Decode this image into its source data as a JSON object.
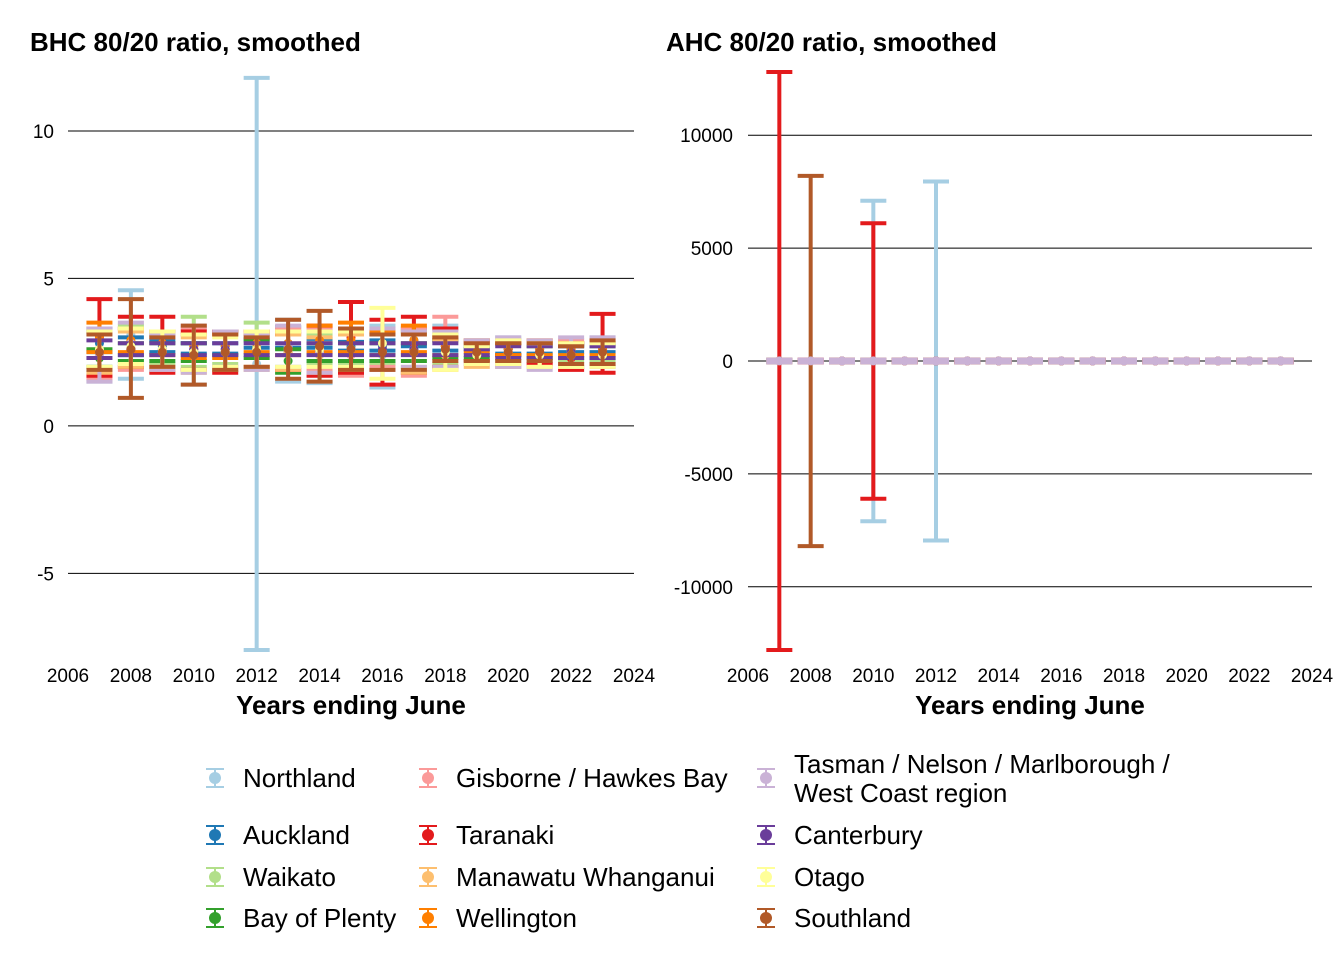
{
  "chart_data": [
    {
      "type": "errorbar",
      "title": "BHC 80/20 ratio, smoothed",
      "xlabel": "Years ending June",
      "ylabel": "",
      "xlim": [
        2006,
        2024
      ],
      "ylim": [
        -7.6,
        12
      ],
      "xticks": [
        "2006",
        "2008",
        "2010",
        "2012",
        "2014",
        "2016",
        "2018",
        "2020",
        "2022",
        "2024"
      ],
      "yticks": [
        -5,
        0,
        5,
        10
      ],
      "grid": "horizontal",
      "x": [
        2007,
        2008,
        2009,
        2010,
        2011,
        2012,
        2013,
        2014,
        2015,
        2016,
        2017,
        2018,
        2019,
        2020,
        2021,
        2022,
        2023
      ],
      "series": [
        {
          "name": "Northland",
          "color": "#a6cee3",
          "values": [
            2.4,
            3.1,
            2.6,
            2.4,
            2.5,
            2.1,
            2.5,
            2.4,
            2.5,
            2.4,
            2.6,
            2.7,
            2.5,
            2.5,
            2.4,
            2.4,
            2.5
          ],
          "lower": [
            1.5,
            1.6,
            1.9,
            1.4,
            1.9,
            -7.6,
            1.5,
            1.45,
            1.9,
            1.3,
            1.9,
            1.95,
            2.1,
            2.0,
            2.0,
            2.0,
            2.0
          ],
          "upper": [
            3.2,
            4.6,
            3.2,
            3.3,
            3.1,
            11.8,
            3.6,
            3.3,
            3.1,
            3.4,
            3.2,
            3.4,
            2.9,
            3.0,
            2.8,
            2.8,
            3.0
          ]
        },
        {
          "name": "Auckland",
          "color": "#1f78b4",
          "values": [
            2.8,
            2.6,
            2.7,
            2.6,
            2.6,
            2.8,
            2.8,
            2.8,
            2.7,
            2.7,
            2.9,
            2.7,
            2.7,
            2.6,
            2.6,
            2.6,
            2.6
          ],
          "lower": [
            2.5,
            2.4,
            2.5,
            2.45,
            2.45,
            2.65,
            2.65,
            2.65,
            2.55,
            2.55,
            2.7,
            2.55,
            2.6,
            2.45,
            2.45,
            2.5,
            2.5
          ],
          "upper": [
            3.3,
            3.0,
            2.9,
            2.8,
            2.8,
            2.95,
            3.35,
            2.95,
            2.85,
            2.9,
            3.3,
            2.9,
            2.8,
            2.8,
            2.8,
            2.75,
            2.75
          ]
        },
        {
          "name": "Waikato",
          "color": "#b2df8a",
          "values": [
            2.6,
            2.8,
            2.6,
            2.7,
            2.6,
            2.7,
            2.6,
            2.6,
            2.6,
            2.6,
            2.6,
            2.6,
            2.5,
            2.5,
            2.5,
            2.5,
            2.5
          ],
          "lower": [
            2.0,
            2.2,
            2.1,
            2.0,
            2.1,
            2.0,
            2.0,
            2.1,
            2.1,
            2.1,
            2.0,
            2.1,
            2.2,
            2.2,
            2.2,
            2.2,
            2.2
          ],
          "upper": [
            3.2,
            3.4,
            3.1,
            3.7,
            3.2,
            3.5,
            3.2,
            3.1,
            3.1,
            3.1,
            3.2,
            3.1,
            2.8,
            2.8,
            2.8,
            2.8,
            2.8
          ]
        },
        {
          "name": "Bay of Plenty",
          "color": "#33a02c",
          "values": [
            2.3,
            2.5,
            2.5,
            2.5,
            2.7,
            2.6,
            2.2,
            2.5,
            2.5,
            2.5,
            2.5,
            2.6,
            2.5,
            2.6,
            2.5,
            2.5,
            2.5
          ],
          "lower": [
            2.0,
            2.2,
            2.2,
            2.2,
            2.4,
            2.3,
            1.8,
            2.2,
            2.2,
            2.2,
            2.2,
            2.3,
            2.3,
            2.4,
            2.3,
            2.3,
            2.3
          ],
          "upper": [
            2.6,
            2.8,
            2.8,
            2.8,
            3.2,
            2.9,
            2.6,
            2.8,
            2.8,
            2.8,
            2.8,
            2.9,
            2.7,
            2.8,
            2.7,
            2.7,
            2.7
          ]
        },
        {
          "name": "Gisborne / Hawkes Bay",
          "color": "#fb9a99",
          "values": [
            2.4,
            2.6,
            2.5,
            2.6,
            2.6,
            2.6,
            2.6,
            2.6,
            2.4,
            2.6,
            2.5,
            2.7,
            2.5,
            2.5,
            2.5,
            2.5,
            2.5
          ],
          "lower": [
            1.6,
            1.9,
            2.0,
            1.9,
            2.0,
            2.0,
            1.9,
            1.9,
            1.7,
            2.0,
            1.7,
            2.0,
            2.1,
            2.1,
            2.1,
            2.1,
            2.1
          ],
          "upper": [
            3.2,
            3.3,
            3.0,
            3.3,
            3.2,
            3.2,
            3.3,
            3.3,
            3.1,
            3.3,
            3.3,
            3.7,
            2.9,
            2.9,
            2.9,
            2.9,
            2.9
          ]
        },
        {
          "name": "Taranaki",
          "color": "#e31a1c",
          "values": [
            3.0,
            2.8,
            2.8,
            2.6,
            2.5,
            2.6,
            2.5,
            2.6,
            3.0,
            2.5,
            2.8,
            2.7,
            2.5,
            2.6,
            2.5,
            2.3,
            2.8
          ],
          "lower": [
            1.7,
            2.0,
            1.8,
            1.9,
            1.8,
            2.0,
            1.9,
            1.7,
            1.8,
            1.4,
            1.8,
            2.0,
            2.2,
            2.4,
            2.1,
            1.9,
            1.8
          ],
          "upper": [
            4.3,
            3.7,
            3.7,
            3.2,
            3.2,
            3.2,
            3.1,
            3.4,
            4.2,
            3.6,
            3.7,
            3.3,
            2.8,
            2.8,
            2.8,
            2.8,
            3.8
          ]
        },
        {
          "name": "Manawatu Whanganui",
          "color": "#fdbf6f",
          "values": [
            2.5,
            2.6,
            2.5,
            2.4,
            2.5,
            2.5,
            2.5,
            2.4,
            2.5,
            2.5,
            2.5,
            2.4,
            2.4,
            2.4,
            2.4,
            2.4,
            2.4
          ],
          "lower": [
            1.8,
            2.0,
            1.9,
            1.8,
            1.9,
            1.9,
            1.9,
            1.8,
            1.9,
            1.9,
            1.8,
            1.9,
            2.0,
            2.0,
            2.0,
            2.0,
            2.0
          ],
          "upper": [
            3.2,
            3.2,
            3.1,
            3.0,
            3.1,
            3.1,
            3.1,
            3.0,
            3.1,
            3.1,
            3.2,
            2.9,
            2.8,
            2.8,
            2.8,
            2.8,
            2.8
          ]
        },
        {
          "name": "Wellington",
          "color": "#ff7f00",
          "values": [
            3.0,
            2.9,
            2.8,
            2.7,
            2.7,
            2.8,
            2.8,
            2.9,
            2.9,
            2.8,
            2.9,
            2.7,
            2.7,
            2.6,
            2.6,
            2.6,
            2.6
          ],
          "lower": [
            2.5,
            2.5,
            2.4,
            2.3,
            2.3,
            2.5,
            2.4,
            2.5,
            2.5,
            2.4,
            2.5,
            2.4,
            2.5,
            2.4,
            2.4,
            2.4,
            2.4
          ],
          "upper": [
            3.5,
            3.3,
            3.2,
            3.1,
            3.1,
            3.1,
            3.2,
            3.4,
            3.5,
            3.2,
            3.4,
            3.0,
            2.9,
            2.8,
            2.9,
            2.8,
            2.8
          ]
        },
        {
          "name": "Tasman / Nelson / Marlborough / West Coast region",
          "color": "#cab2d6",
          "values": [
            2.4,
            2.8,
            2.5,
            2.6,
            2.6,
            2.5,
            2.7,
            2.5,
            2.6,
            2.6,
            2.6,
            2.6,
            2.5,
            2.5,
            2.4,
            2.5,
            2.5
          ],
          "lower": [
            1.5,
            2.1,
            1.9,
            1.8,
            2.0,
            1.9,
            2.0,
            1.8,
            2.0,
            1.9,
            2.0,
            2.0,
            2.1,
            2.0,
            1.9,
            2.0,
            2.0
          ],
          "upper": [
            3.3,
            3.5,
            3.1,
            3.4,
            3.2,
            3.1,
            3.4,
            3.2,
            3.2,
            3.3,
            3.2,
            3.2,
            2.9,
            3.0,
            2.9,
            3.0,
            3.0
          ]
        },
        {
          "name": "Canterbury",
          "color": "#6a3d9a",
          "values": [
            2.6,
            2.6,
            2.6,
            2.6,
            2.6,
            2.6,
            2.6,
            2.6,
            2.6,
            2.6,
            2.6,
            2.6,
            2.5,
            2.5,
            2.5,
            2.5,
            2.5
          ],
          "lower": [
            2.3,
            2.4,
            2.4,
            2.4,
            2.4,
            2.4,
            2.4,
            2.4,
            2.4,
            2.4,
            2.4,
            2.4,
            2.4,
            2.3,
            2.3,
            2.3,
            2.3
          ],
          "upper": [
            2.9,
            2.8,
            2.8,
            2.8,
            2.8,
            2.8,
            2.8,
            2.8,
            2.8,
            2.8,
            2.8,
            2.8,
            2.6,
            2.7,
            2.7,
            2.7,
            2.7
          ]
        },
        {
          "name": "Otago",
          "color": "#ffff99",
          "values": [
            2.6,
            2.7,
            2.6,
            2.5,
            2.5,
            2.6,
            2.6,
            2.6,
            2.6,
            2.8,
            2.5,
            2.5,
            2.4,
            2.5,
            2.4,
            2.4,
            2.4
          ],
          "lower": [
            2.0,
            2.1,
            2.0,
            1.9,
            2.0,
            2.0,
            2.0,
            2.0,
            2.0,
            1.6,
            1.9,
            1.9,
            2.1,
            2.1,
            2.0,
            2.0,
            2.0
          ],
          "upper": [
            3.2,
            3.3,
            3.2,
            3.1,
            3.0,
            3.2,
            3.2,
            3.2,
            3.2,
            4.0,
            3.1,
            3.1,
            2.7,
            2.9,
            2.8,
            2.8,
            2.8
          ]
        },
        {
          "name": "Southland",
          "color": "#b15928",
          "values": [
            2.5,
            2.6,
            2.5,
            2.4,
            2.5,
            2.5,
            2.6,
            2.7,
            2.6,
            2.5,
            2.5,
            2.6,
            2.5,
            2.5,
            2.5,
            2.4,
            2.5
          ],
          "lower": [
            1.9,
            0.95,
            2.0,
            1.4,
            1.9,
            2.0,
            1.6,
            1.5,
            1.9,
            1.9,
            1.9,
            2.2,
            2.2,
            2.2,
            2.2,
            2.1,
            2.1
          ],
          "upper": [
            3.1,
            4.3,
            3.0,
            3.4,
            3.1,
            3.0,
            3.6,
            3.9,
            3.3,
            3.1,
            3.1,
            3.0,
            2.8,
            2.8,
            2.8,
            2.7,
            2.9
          ]
        }
      ]
    },
    {
      "type": "errorbar",
      "title": "AHC 80/20 ratio, smoothed",
      "xlabel": "Years ending June",
      "ylabel": "",
      "xlim": [
        2006,
        2024
      ],
      "ylim": [
        -12800,
        12800
      ],
      "xticks": [
        "2006",
        "2008",
        "2010",
        "2012",
        "2014",
        "2016",
        "2018",
        "2020",
        "2022",
        "2024"
      ],
      "yticks": [
        -10000,
        -5000,
        0,
        5000,
        10000
      ],
      "grid": "horizontal",
      "x": [
        2007,
        2008,
        2009,
        2010,
        2011,
        2012,
        2013,
        2014,
        2015,
        2016,
        2017,
        2018,
        2019,
        2020,
        2021,
        2022,
        2023
      ],
      "series": [
        {
          "name": "Northland",
          "color": "#a6cee3",
          "values": [
            3,
            3,
            3,
            3,
            3,
            3,
            3,
            3,
            3,
            3,
            3,
            3,
            3,
            3,
            3,
            3,
            3
          ],
          "lower": [
            -60,
            -60,
            -60,
            -7100,
            -60,
            -7950,
            -60,
            -60,
            -60,
            -60,
            -60,
            -60,
            -60,
            -60,
            -60,
            -60,
            -60
          ],
          "upper": [
            60,
            60,
            60,
            7100,
            60,
            7950,
            60,
            60,
            60,
            60,
            60,
            60,
            60,
            60,
            60,
            60,
            60
          ]
        },
        {
          "name": "Taranaki",
          "color": "#e31a1c",
          "values": [
            3,
            3,
            3,
            3,
            3,
            3,
            3,
            3,
            3,
            3,
            3,
            3,
            3,
            3,
            3,
            3,
            3
          ],
          "lower": [
            -12800,
            -60,
            -60,
            -6100,
            -60,
            -60,
            -60,
            -60,
            -60,
            -60,
            -60,
            -60,
            -60,
            -60,
            -60,
            -60,
            -60
          ],
          "upper": [
            12800,
            60,
            60,
            6100,
            60,
            60,
            60,
            60,
            60,
            60,
            60,
            60,
            60,
            60,
            60,
            60,
            60
          ]
        },
        {
          "name": "Southland",
          "color": "#b15928",
          "values": [
            3,
            3,
            3,
            3,
            3,
            3,
            3,
            3,
            3,
            3,
            3,
            3,
            3,
            3,
            3,
            3,
            3
          ],
          "lower": [
            -60,
            -8200,
            -60,
            -60,
            -60,
            -60,
            -60,
            -60,
            -60,
            -60,
            -60,
            -60,
            -60,
            -60,
            -60,
            -60,
            -60
          ],
          "upper": [
            60,
            8200,
            60,
            60,
            60,
            60,
            60,
            60,
            60,
            60,
            60,
            60,
            60,
            60,
            60,
            60,
            60
          ]
        },
        {
          "name": "Tasman / Nelson / Marlborough / West Coast region",
          "color": "#cab2d6",
          "values": [
            3,
            3,
            3,
            3,
            3,
            3,
            3,
            3,
            3,
            3,
            3,
            3,
            3,
            3,
            3,
            3,
            3
          ],
          "lower": [
            -60,
            -60,
            -60,
            -60,
            -60,
            -60,
            -60,
            -60,
            -60,
            -60,
            -60,
            -60,
            -60,
            -60,
            -60,
            -60,
            -60
          ],
          "upper": [
            60,
            60,
            60,
            60,
            60,
            60,
            60,
            60,
            60,
            60,
            60,
            60,
            60,
            60,
            60,
            60,
            60
          ]
        }
      ]
    }
  ],
  "legend": {
    "placement": "bottom",
    "items": [
      {
        "label": "Northland",
        "color": "#a6cee3"
      },
      {
        "label": "Auckland",
        "color": "#1f78b4"
      },
      {
        "label": "Waikato",
        "color": "#b2df8a"
      },
      {
        "label": "Bay of Plenty",
        "color": "#33a02c"
      },
      {
        "label": "Gisborne / Hawkes Bay",
        "color": "#fb9a99"
      },
      {
        "label": "Taranaki",
        "color": "#e31a1c"
      },
      {
        "label": "Manawatu Whanganui",
        "color": "#fdbf6f"
      },
      {
        "label": "Wellington",
        "color": "#ff7f00"
      },
      {
        "label": "Tasman / Nelson / Marlborough / West Coast region",
        "color": "#cab2d6",
        "lines": [
          "Tasman / Nelson / Marlborough /",
          "West Coast region"
        ]
      },
      {
        "label": "Canterbury",
        "color": "#6a3d9a"
      },
      {
        "label": "Otago",
        "color": "#ffff99"
      },
      {
        "label": "Southland",
        "color": "#b15928"
      }
    ]
  }
}
